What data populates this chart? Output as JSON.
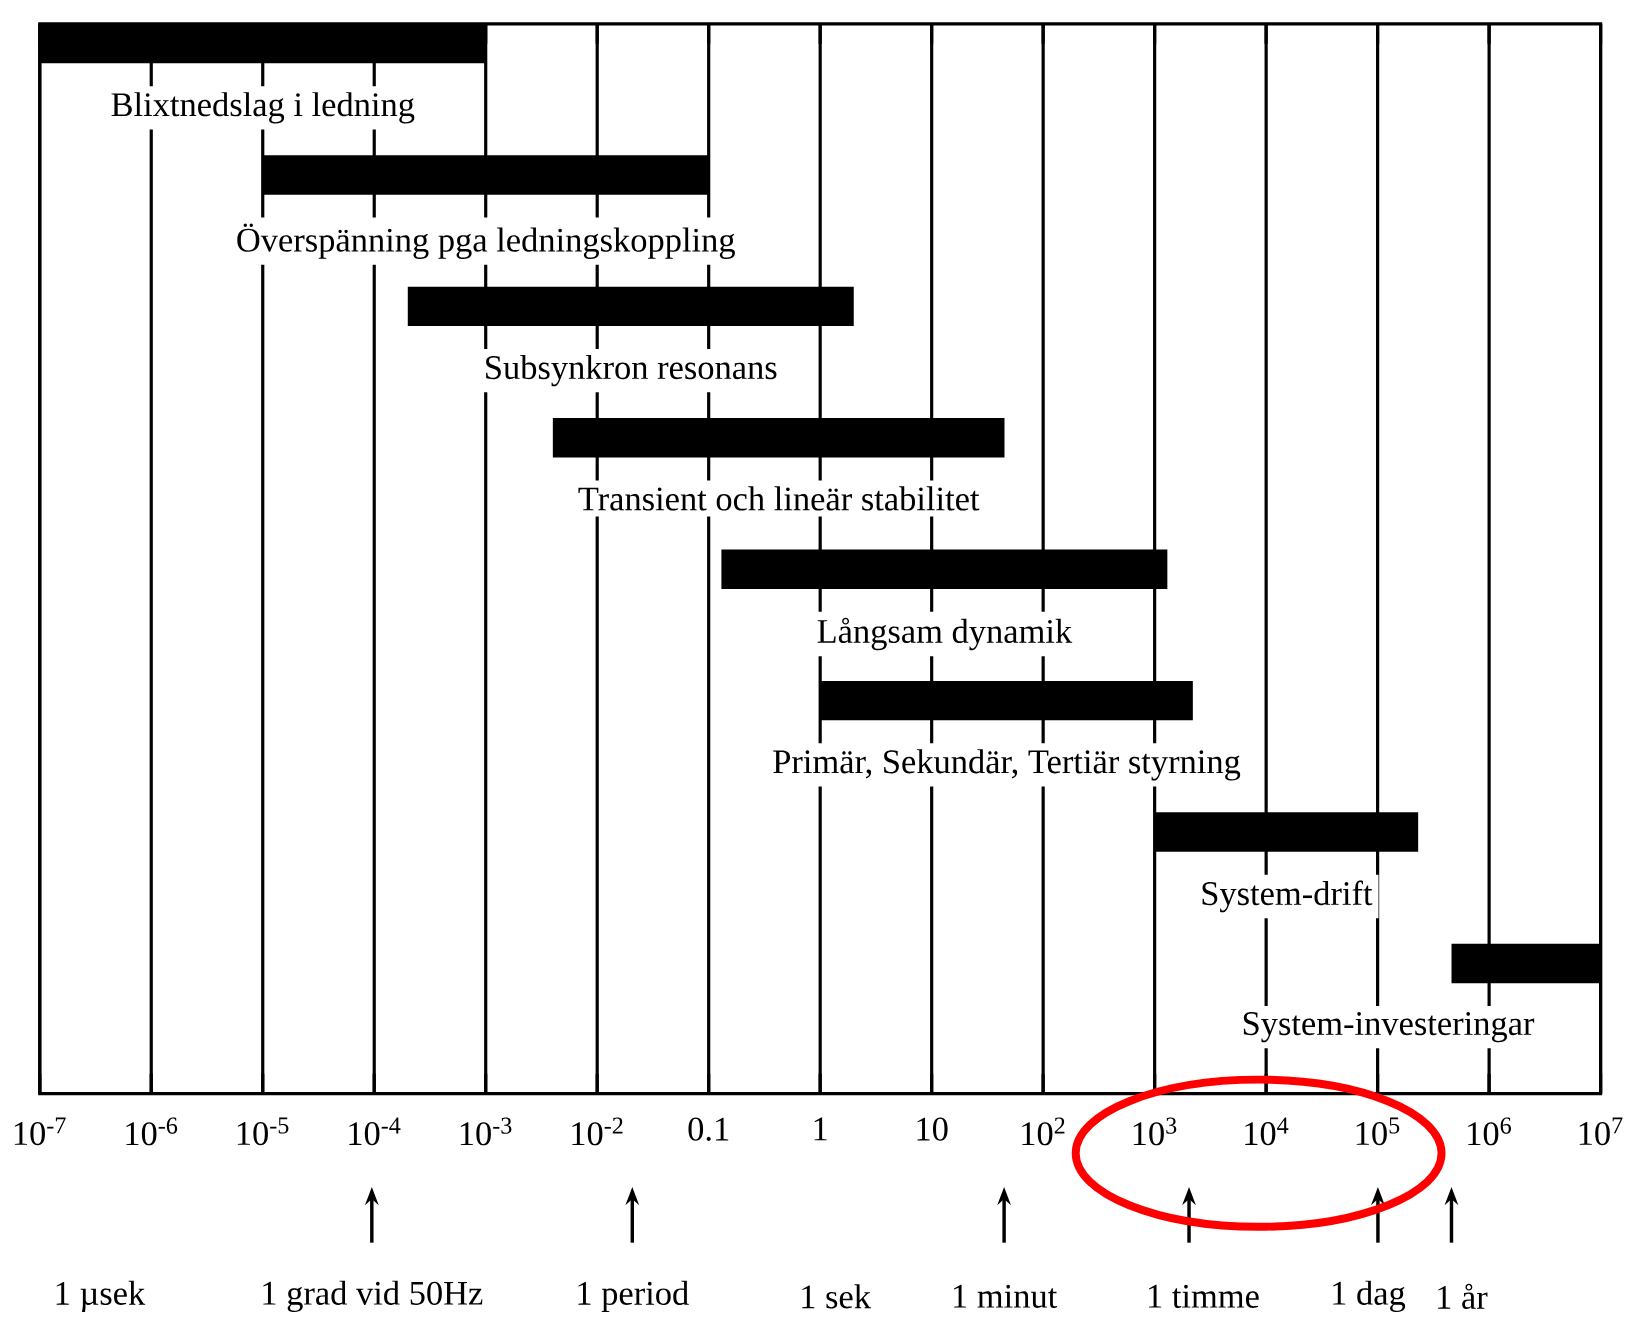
{
  "chart_data": {
    "type": "bar",
    "orientation": "horizontal",
    "log": "x",
    "grid": "x",
    "tick_labels": "x",
    "color": "#000000",
    "categories": [
      "Blixtnedslag i ledning",
      "Överspänning pga ledningskoppling",
      "Subsynkron resonans",
      "Transient och lineär stabilitet",
      "Långsam dynamik",
      "Primär, Sekundär, Tertiär styrning",
      "System-drift",
      "System-investeringar"
    ],
    "base": [
      1e-07,
      1e-05,
      0.0002,
      0.004,
      0.13,
      1,
      1000,
      460000
    ],
    "values": [
      0.001,
      0.1,
      2,
      45,
      1300,
      2200,
      230000,
      9540000
    ],
    "xlim": [
      1e-07,
      10000000.0
    ],
    "xticks": [
      {
        "value": 1e-07,
        "label": "10$^{-7}$"
      },
      {
        "value": 1e-06,
        "label": "10$^{-6}$"
      },
      {
        "value": 1e-05,
        "label": "10$^{-5}$"
      },
      {
        "value": 0.0001,
        "label": "10$^{-4}$"
      },
      {
        "value": 0.001,
        "label": "10$^{-3}$"
      },
      {
        "value": 0.01,
        "label": "10$^{-2}$"
      },
      0.1,
      1,
      10,
      {
        "value": 100,
        "label": "10$^{2}$"
      },
      {
        "value": 1000,
        "label": "10$^{3}$"
      },
      {
        "value": 10000,
        "label": "10$^{4}$"
      },
      {
        "value": 100000,
        "label": "10$^{5}$"
      },
      {
        "value": 1000000,
        "label": "10$^{6}$"
      },
      {
        "value": 10000000,
        "label": "10$^{7}$"
      }
    ],
    "annotations": [
      "1 µsek",
      "1 grad vid 50Hz",
      "1 period",
      "1 sek",
      "1 minut",
      "1 timme",
      "1 dag",
      "1 år"
    ]
  }
}
